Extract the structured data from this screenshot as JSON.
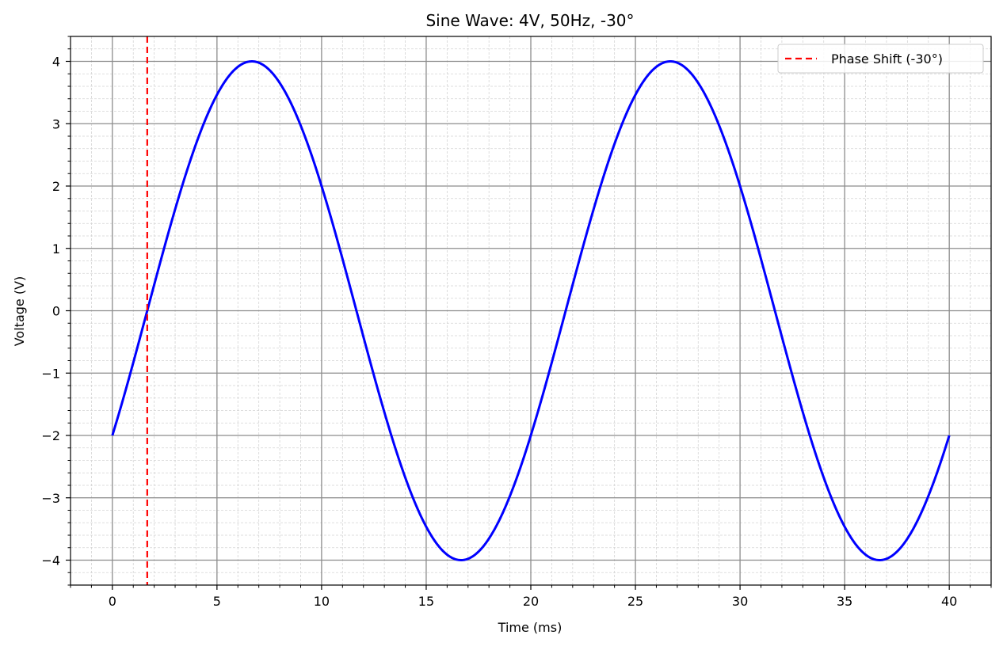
{
  "chart_data": {
    "type": "line",
    "title": "Sine Wave: 4V, 50Hz, -30°",
    "xlabel": "Time (ms)",
    "ylabel": "Voltage (V)",
    "xlim": [
      -2,
      42
    ],
    "ylim": [
      -4.4,
      4.4
    ],
    "x_ticks": [
      0,
      5,
      10,
      15,
      20,
      25,
      30,
      35,
      40
    ],
    "x_tick_labels": [
      "0",
      "5",
      "10",
      "15",
      "20",
      "25",
      "30",
      "35",
      "40"
    ],
    "y_ticks": [
      -4,
      -3,
      -2,
      -1,
      0,
      1,
      2,
      3,
      4
    ],
    "y_tick_labels": [
      "−4",
      "−3",
      "−2",
      "−1",
      "0",
      "1",
      "2",
      "3",
      "4"
    ],
    "grid": {
      "major": true,
      "minor": true
    },
    "legend_position": "top-right",
    "series": [
      {
        "type": "line",
        "color": "#0000ff",
        "function": "amplitude * sin(2*pi*frequency_hz*t/1000 + phase_deg*pi/180)",
        "amplitude": 4,
        "frequency_hz": 50,
        "phase_deg": -30,
        "x_range": [
          0,
          40
        ]
      },
      {
        "name": "Phase Shift (-30°)",
        "type": "vline",
        "x": 1.667,
        "color": "#ff0000",
        "linestyle": "dashed"
      }
    ]
  }
}
